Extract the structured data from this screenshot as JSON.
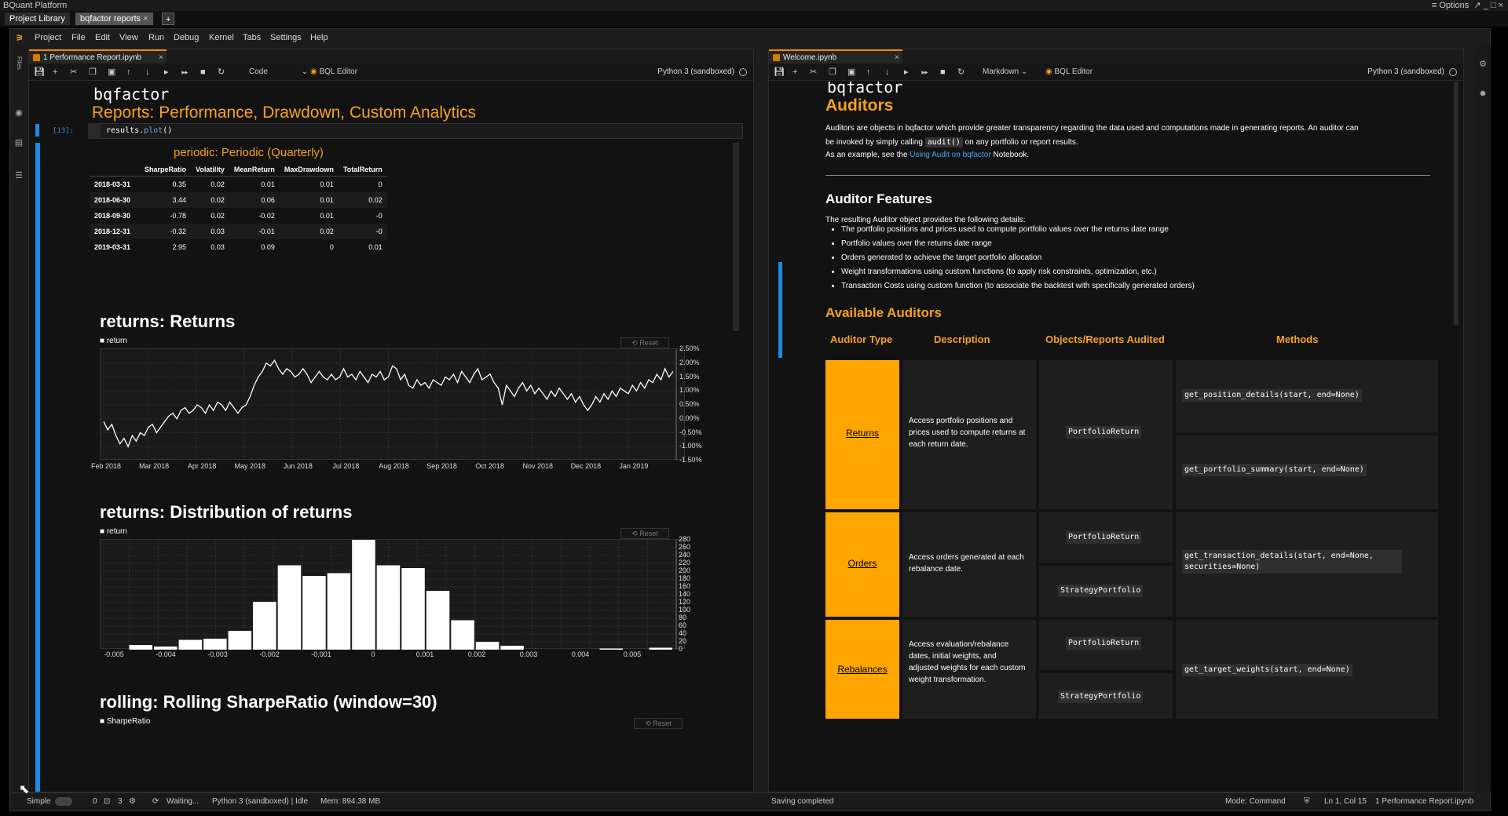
{
  "window": {
    "title": "BQuant Platform",
    "options_label": "≡ Options",
    "controls": "↗ _ □ ×"
  },
  "top_tabs": [
    {
      "label": "Project Library"
    },
    {
      "label": "bqfactor reports"
    }
  ],
  "add_tab": "+",
  "menu": [
    "Project",
    "File",
    "Edit",
    "View",
    "Run",
    "Debug",
    "Kernel",
    "Tabs",
    "Settings",
    "Help"
  ],
  "left_rail": {
    "files_label": "Files"
  },
  "left_panel": {
    "tab_label": "1 Performance Report.ipynb",
    "cell_type": "Code",
    "bql_editor": "BQL Editor",
    "kernel": "Python 3 (sandboxed)",
    "heading_mono": "bqfactor",
    "heading_main": "Reports: Performance, Drawdown, Custom Analytics",
    "cell_prompt": "[13]:",
    "cell_code_obj": "results.",
    "cell_code_fn": "plot",
    "cell_code_end": "()",
    "table_title": "periodic: Periodic (Quarterly)",
    "table_headers": [
      "SharpeRatio",
      "Volatility",
      "MeanReturn",
      "MaxDrawdown",
      "TotalReturn"
    ],
    "table_rows": [
      {
        "idx": "2018-03-31",
        "vals": [
          "0.35",
          "0.02",
          "0.01",
          "0.01",
          "0"
        ]
      },
      {
        "idx": "2018-06-30",
        "vals": [
          "3.44",
          "0.02",
          "0.06",
          "0.01",
          "0.02"
        ]
      },
      {
        "idx": "2018-09-30",
        "vals": [
          "-0.78",
          "0.02",
          "-0.02",
          "0.01",
          "-0"
        ]
      },
      {
        "idx": "2018-12-31",
        "vals": [
          "-0.32",
          "0.03",
          "-0.01",
          "0.02",
          "-0"
        ]
      },
      {
        "idx": "2019-03-31",
        "vals": [
          "2.95",
          "0.03",
          "0.09",
          "0",
          "0.01"
        ]
      }
    ],
    "reset_label": "Reset",
    "plot3_title": "rolling: Rolling SharpeRatio (window=30)",
    "plot3_legend": "SharpeRatio"
  },
  "chart_data": [
    {
      "type": "line",
      "title": "returns: Returns",
      "legend": [
        "return"
      ],
      "x_ticks": [
        "Feb 2018",
        "Mar 2018",
        "Apr 2018",
        "May 2018",
        "Jun 2018",
        "Jul 2018",
        "Aug 2018",
        "Sep 2018",
        "Oct 2018",
        "Nov 2018",
        "Dec 2018",
        "Jan 2019"
      ],
      "y_ticks": [
        "2.50%",
        "2.00%",
        "1.50%",
        "1.00%",
        "0.50%",
        "0.00%",
        "-0.50%",
        "-1.00%",
        "-1.50%"
      ],
      "ylim": [
        -1.5,
        2.5
      ],
      "values": [
        -0.1,
        -0.4,
        -0.2,
        -0.6,
        -0.9,
        -0.7,
        -1.0,
        -0.6,
        -0.8,
        -0.5,
        -0.6,
        -0.3,
        -0.2,
        -0.5,
        -0.3,
        -0.1,
        0.1,
        0.2,
        0.0,
        0.3,
        0.4,
        0.2,
        0.3,
        0.5,
        0.4,
        0.2,
        0.5,
        0.3,
        0.6,
        0.5,
        0.3,
        0.6,
        0.4,
        0.2,
        0.4,
        0.5,
        0.8,
        1.2,
        1.5,
        1.7,
        2.0,
        1.9,
        2.1,
        1.8,
        1.6,
        1.8,
        1.7,
        1.5,
        1.6,
        1.8,
        1.6,
        1.3,
        1.5,
        1.7,
        1.5,
        1.4,
        1.6,
        1.4,
        1.5,
        1.8,
        1.5,
        1.6,
        1.4,
        1.7,
        1.5,
        1.3,
        1.6,
        1.5,
        1.7,
        1.4,
        1.5,
        1.9,
        1.8,
        1.4,
        1.6,
        1.2,
        1.1,
        1.4,
        1.2,
        1.3,
        1.1,
        1.4,
        1.3,
        1.2,
        1.5,
        1.4,
        1.6,
        1.3,
        1.7,
        1.5,
        1.3,
        1.6,
        1.8,
        1.4,
        1.5,
        1.6,
        1.3,
        1.1,
        0.5,
        1.2,
        1.0,
        0.8,
        1.1,
        1.3,
        1.0,
        1.2,
        0.9,
        1.1,
        0.9,
        0.7,
        1.0,
        0.8,
        1.1,
        0.9,
        0.7,
        0.9,
        0.6,
        0.8,
        0.5,
        0.3,
        0.5,
        0.8,
        0.6,
        0.9,
        0.7,
        1.0,
        0.8,
        1.1,
        1.0,
        0.9,
        1.2,
        1.0,
        1.3,
        1.1,
        1.4,
        1.3,
        1.6,
        1.4,
        1.8,
        1.5,
        1.7
      ]
    },
    {
      "type": "bar",
      "title": "returns: Distribution of returns",
      "legend": [
        "return"
      ],
      "x_ticks": [
        "-0.005",
        "-0.004",
        "-0.003",
        "-0.002",
        "-0.001",
        "0",
        "0.001",
        "0.002",
        "0.003",
        "0.004",
        "0.005"
      ],
      "y_ticks": [
        "280",
        "260",
        "240",
        "220",
        "200",
        "180",
        "160",
        "140",
        "120",
        "100",
        "80",
        "60",
        "40",
        "20",
        "0"
      ],
      "ylim": [
        0,
        280
      ],
      "values": [
        0,
        12,
        8,
        25,
        28,
        48,
        122,
        215,
        188,
        195,
        280,
        215,
        208,
        150,
        75,
        20,
        10,
        0,
        0,
        0,
        3,
        0,
        5
      ]
    }
  ],
  "right_panel": {
    "tab_label": "Welcome.ipynb",
    "cell_type": "Markdown",
    "bql_editor": "BQL Editor",
    "kernel": "Python 3 (sandboxed)",
    "heading_mono": "bqfactor",
    "heading_main": "Auditors",
    "intro_1": "Auditors are objects in bqfactor which provide greater transparency regarding the data used and computations made in generating reports. An auditor can",
    "intro_2a": "be invoked by simply calling",
    "intro_2code": "audit()",
    "intro_2b": "on any portfolio or report results.",
    "intro_3a": "As an example, see the",
    "intro_3link": "Using Audit on bqfactor",
    "intro_3b": "Notebook.",
    "features_title": "Auditor Features",
    "features_lead": "The resulting Auditor object provides the following details:",
    "features": [
      "The portfolio positions and prices used to compute portfolio values over the returns date range",
      "Portfolio values over the returns date range",
      "Orders generated to achieve the target portfolio allocation",
      "Weight transformations using custom functions (to apply risk constraints, optimization, etc.)",
      "Transaction Costs using custom function (to associate the backtest with specifically generated orders)"
    ],
    "available_title": "Available Auditors",
    "table_headers": [
      "Auditor Type",
      "Description",
      "Objects/Reports Audited",
      "Methods"
    ],
    "rows": [
      {
        "type": "Returns",
        "desc": "Access portfolio positions and prices used to compute returns at each return date.",
        "objects": [
          "PortfolioReturn"
        ],
        "methods": [
          "get_position_details(start, end=None)",
          "get_portfolio_summary(start, end=None)"
        ]
      },
      {
        "type": "Orders",
        "desc": "Access orders generated at each rebalance date.",
        "objects": [
          "PortfolioReturn",
          "StrategyPortfolio"
        ],
        "methods": [
          "get_transaction_details(start, end=None, securities=None)"
        ]
      },
      {
        "type": "Rebalances",
        "desc": "Access evaluation/rebalance dates, initial weights, and adjusted weights for each custom weight transformation.",
        "objects": [
          "PortfolioReturn",
          "StrategyPortfolio"
        ],
        "methods": [
          "get_target_weights(start, end=None)"
        ]
      }
    ]
  },
  "status": {
    "mode_simple": "Simple",
    "count_a": "0",
    "count_b": "3",
    "waiting": "Waiting...",
    "kernel_state": "Python 3 (sandboxed) | Idle",
    "mem": "Mem: 894.38 MB",
    "saving": "Saving completed",
    "mode": "Mode: Command",
    "position": "Ln 1, Col 15",
    "file": "1 Performance Report.ipynb"
  }
}
